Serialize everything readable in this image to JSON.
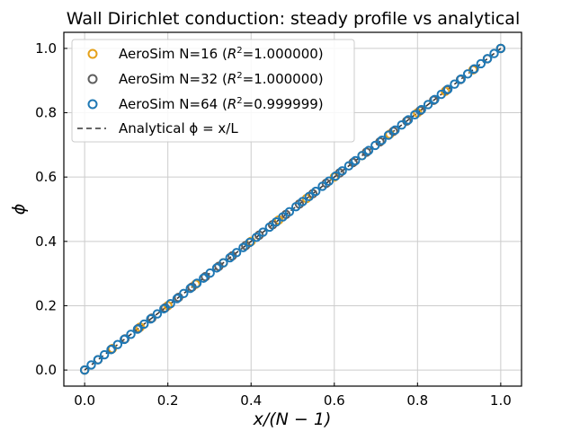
{
  "chart_data": {
    "type": "scatter",
    "title": "Wall Dirichlet conduction: steady profile vs analytical",
    "xlabel": "x/(N − 1)",
    "ylabel": "ϕ",
    "xlim": [
      -0.05,
      1.05
    ],
    "ylim": [
      -0.05,
      1.05
    ],
    "xticks": [
      "0.0",
      "0.2",
      "0.4",
      "0.6",
      "0.8",
      "1.0"
    ],
    "yticks": [
      "0.0",
      "0.2",
      "0.4",
      "0.6",
      "0.8",
      "1.0"
    ],
    "grid": true,
    "legend_position": "top-left",
    "series": [
      {
        "label": "AeroSim N=16",
        "r2_label": "R",
        "r2_sup": "2",
        "r2_value": "=1.000000",
        "color": "#E5A11A",
        "marker": "circle",
        "n": 16
      },
      {
        "label": "AeroSim N=32",
        "r2_label": "R",
        "r2_sup": "2",
        "r2_value": "=1.000000",
        "color": "#5F5F5F",
        "marker": "circle",
        "n": 32
      },
      {
        "label": "AeroSim N=64",
        "r2_label": "R",
        "r2_sup": "2",
        "r2_value": "=0.999999",
        "color": "#1F78B4",
        "marker": "circle",
        "n": 64
      }
    ],
    "analytical": {
      "label": "Analytical ϕ = x/L",
      "color": "#333333",
      "style": "dashed",
      "x": [
        0,
        1
      ],
      "y": [
        0,
        1
      ]
    }
  }
}
